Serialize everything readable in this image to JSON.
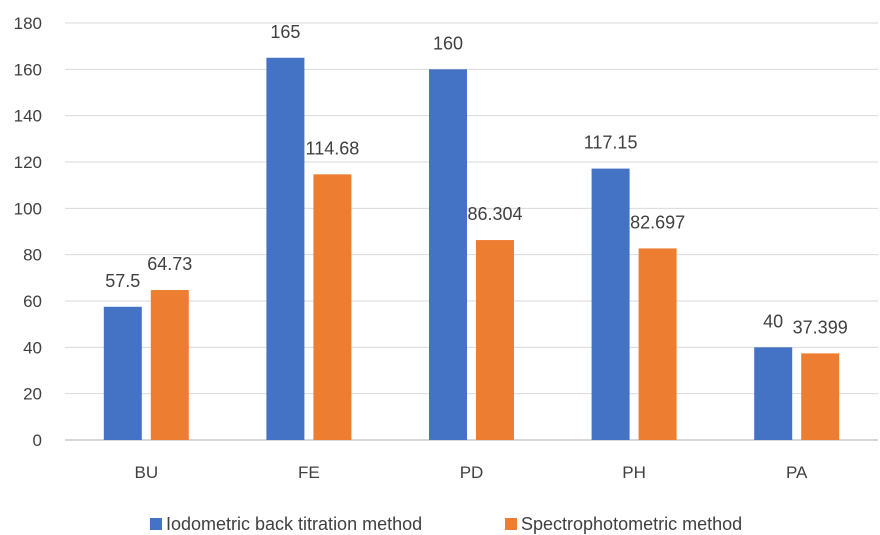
{
  "chart_data": {
    "type": "bar",
    "title": "",
    "xlabel": "",
    "ylabel": "",
    "categories": [
      "BU",
      "FE",
      "PD",
      "PH",
      "PA"
    ],
    "ylim": [
      0,
      180
    ],
    "yticks": [
      0,
      20,
      40,
      60,
      80,
      100,
      120,
      140,
      160,
      180
    ],
    "grid": true,
    "legend_position": "bottom",
    "series": [
      {
        "name": "Iodometric back titration method",
        "color": "#4472C4",
        "values": [
          57.5,
          165,
          160,
          117.15,
          40
        ],
        "labels": [
          "57.5",
          "165",
          "160",
          "117.15",
          "40"
        ]
      },
      {
        "name": "Spectrophotometric method",
        "color": "#ED7D31",
        "values": [
          64.73,
          114.68,
          86.304,
          82.697,
          37.399
        ],
        "labels": [
          "64.73",
          "114.68",
          "86.304",
          "82.697",
          "37.399"
        ]
      }
    ]
  }
}
